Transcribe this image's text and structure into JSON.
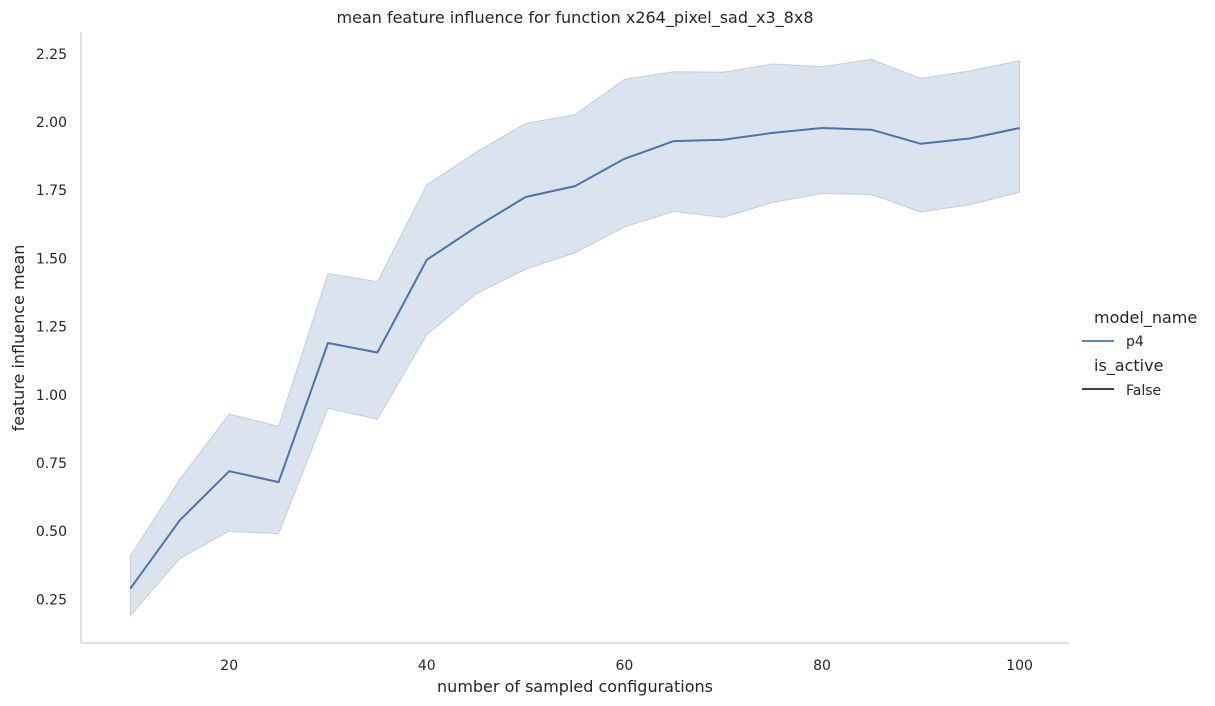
{
  "chart_data": {
    "type": "line",
    "title": "mean feature influence for function x264_pixel_sad_x3_8x8",
    "xlabel": "number of sampled configurations",
    "ylabel": "feature influence mean",
    "xlim": [
      5,
      105
    ],
    "ylim": [
      0.09,
      2.33
    ],
    "xticks": [
      20,
      40,
      60,
      80,
      100
    ],
    "yticks": [
      0.25,
      0.5,
      0.75,
      1.0,
      1.25,
      1.5,
      1.75,
      2.0,
      2.25
    ],
    "ytick_labels": [
      "0.25",
      "0.50",
      "0.75",
      "1.00",
      "1.25",
      "1.50",
      "1.75",
      "2.00",
      "2.25"
    ],
    "grid": false,
    "legend_position": "right",
    "colors": {
      "line": "#4c72b0",
      "band": "#4c72b0",
      "axis": "#cccccc",
      "legend_style_line": "#262626"
    },
    "x": [
      10,
      15,
      20,
      25,
      30,
      35,
      40,
      45,
      50,
      55,
      60,
      65,
      70,
      75,
      80,
      85,
      90,
      95,
      100
    ],
    "series": [
      {
        "name": "p4",
        "values": [
          0.29,
          0.54,
          0.72,
          0.68,
          1.19,
          1.155,
          1.495,
          1.615,
          1.725,
          1.765,
          1.865,
          1.93,
          1.935,
          1.96,
          1.978,
          1.972,
          1.92,
          1.94,
          1.978
        ],
        "lower": [
          0.19,
          0.4,
          0.5,
          0.49,
          0.95,
          0.91,
          1.22,
          1.37,
          1.46,
          1.52,
          1.615,
          1.672,
          1.65,
          1.705,
          1.738,
          1.734,
          1.67,
          1.697,
          1.742
        ],
        "upper": [
          0.41,
          0.69,
          0.93,
          0.885,
          1.445,
          1.415,
          1.77,
          1.89,
          1.995,
          2.027,
          2.157,
          2.185,
          2.183,
          2.213,
          2.203,
          2.23,
          2.16,
          2.188,
          2.225
        ]
      }
    ],
    "legend": {
      "hue_title": "model_name",
      "hue_items": [
        "p4"
      ],
      "style_title": "is_active",
      "style_items": [
        "False"
      ]
    }
  }
}
